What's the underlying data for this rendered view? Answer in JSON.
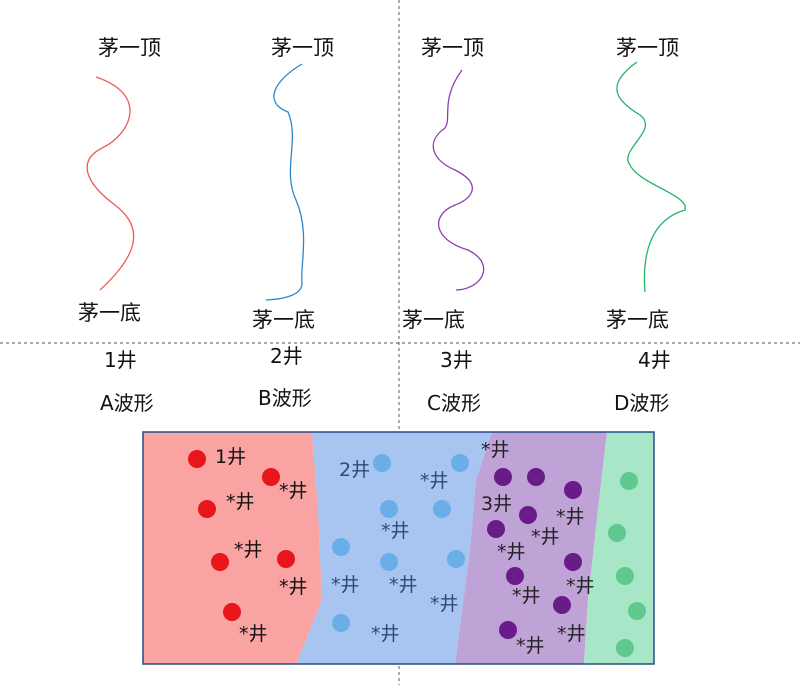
{
  "curves": [
    {
      "top": "茅一顶",
      "bottom": "茅一底",
      "color": "#f05a5a"
    },
    {
      "top": "茅一顶",
      "bottom": "茅一底",
      "color": "#2e86c8"
    },
    {
      "top": "茅一顶",
      "bottom": "茅一底",
      "color": "#8e3fb0"
    },
    {
      "top": "茅一顶",
      "bottom": "茅一底",
      "color": "#22b566"
    }
  ],
  "wells": [
    {
      "label": "1井",
      "wave": "A波形"
    },
    {
      "label": "2井",
      "wave": "B波形"
    },
    {
      "label": "3井",
      "wave": "C波形"
    },
    {
      "label": "4井",
      "wave": "D波形"
    }
  ],
  "map": {
    "zones": [
      {
        "name": "red",
        "fill": "#f9a3a3",
        "dot": "#e8161b"
      },
      {
        "name": "blue",
        "fill": "#a8c4f0",
        "dot": "#6aaee8"
      },
      {
        "name": "purple",
        "fill": "#bfa3d6",
        "dot": "#6a1b8a"
      },
      {
        "name": "green",
        "fill": "#a8e6c8",
        "dot": "#5fc98f"
      }
    ],
    "well_labels": [
      "1井",
      "2井",
      "3井"
    ],
    "star_label": "*井"
  }
}
